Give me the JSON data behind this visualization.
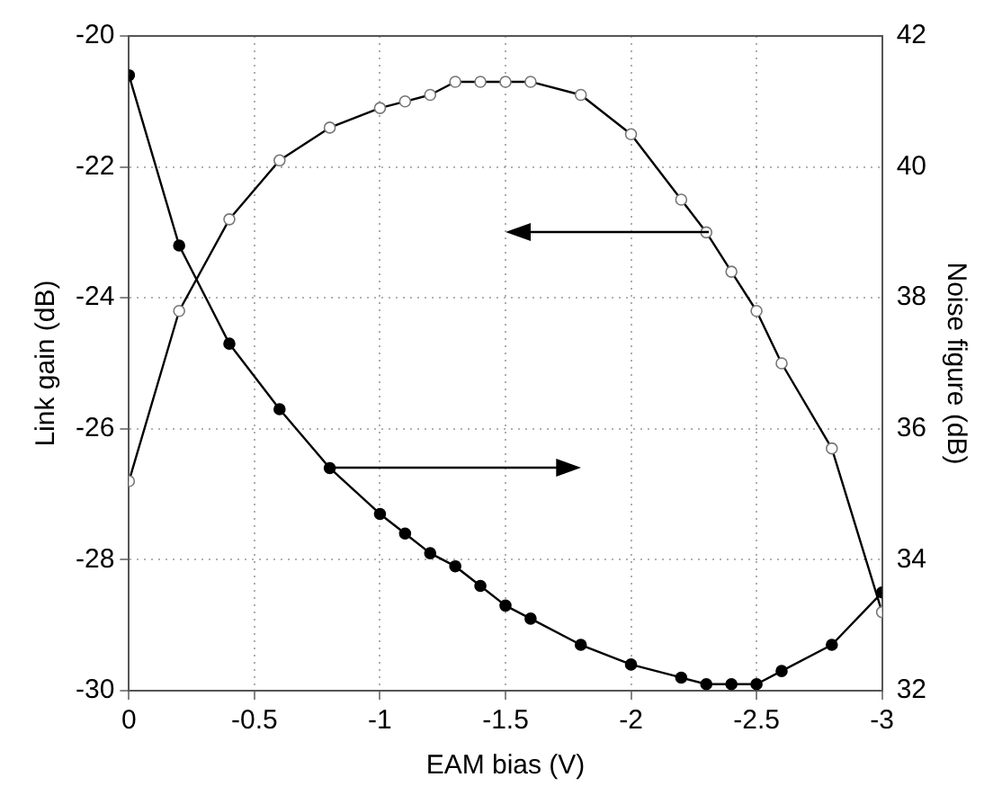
{
  "chart_data": {
    "type": "line",
    "xlabel": "EAM bias (V)",
    "ylabel": "Link gain (dB)",
    "y2label": "Noise figure (dB)",
    "x": [
      0,
      -0.2,
      -0.4,
      -0.6,
      -0.8,
      -1,
      -1.1,
      -1.2,
      -1.3,
      -1.4,
      -1.5,
      -1.6,
      -1.8,
      -2,
      -2.2,
      -2.3,
      -2.4,
      -2.5,
      -2.6,
      -2.8,
      -3
    ],
    "series": [
      {
        "color": "#000000",
        "values": [
          -26.8,
          -24.2,
          -22.8,
          -21.9,
          -21.4,
          -21.1,
          -21.0,
          -20.9,
          -20.7,
          -20.7,
          -20.7,
          -20.7,
          -20.9,
          -21.5,
          -22.5,
          -23.0,
          -23.6,
          -24.2,
          -25.0,
          -26.3,
          -28.8
        ]
      },
      {
        "color": "#000000",
        "axis": "y2",
        "values": [
          41.4,
          38.8,
          37.3,
          36.3,
          35.4,
          34.7,
          34.4,
          34.1,
          33.9,
          33.6,
          33.3,
          33.1,
          32.7,
          32.4,
          32.2,
          32.1,
          32.1,
          32.1,
          32.3,
          32.7,
          33.5
        ]
      }
    ],
    "xlim": [
      0,
      -3
    ],
    "xticks": [
      0,
      -0.5,
      -1,
      -1.5,
      -2,
      -2.5,
      -3
    ],
    "ylim": [
      -30,
      -20
    ],
    "yticks": [
      -30,
      -28,
      -26,
      -24,
      -22,
      -20
    ],
    "y2lim": [
      32,
      42
    ],
    "y2ticks": [
      32,
      34,
      36,
      38,
      40,
      42
    ],
    "grid": true,
    "legend": false,
    "marker": "circle",
    "line_style": "solid"
  }
}
